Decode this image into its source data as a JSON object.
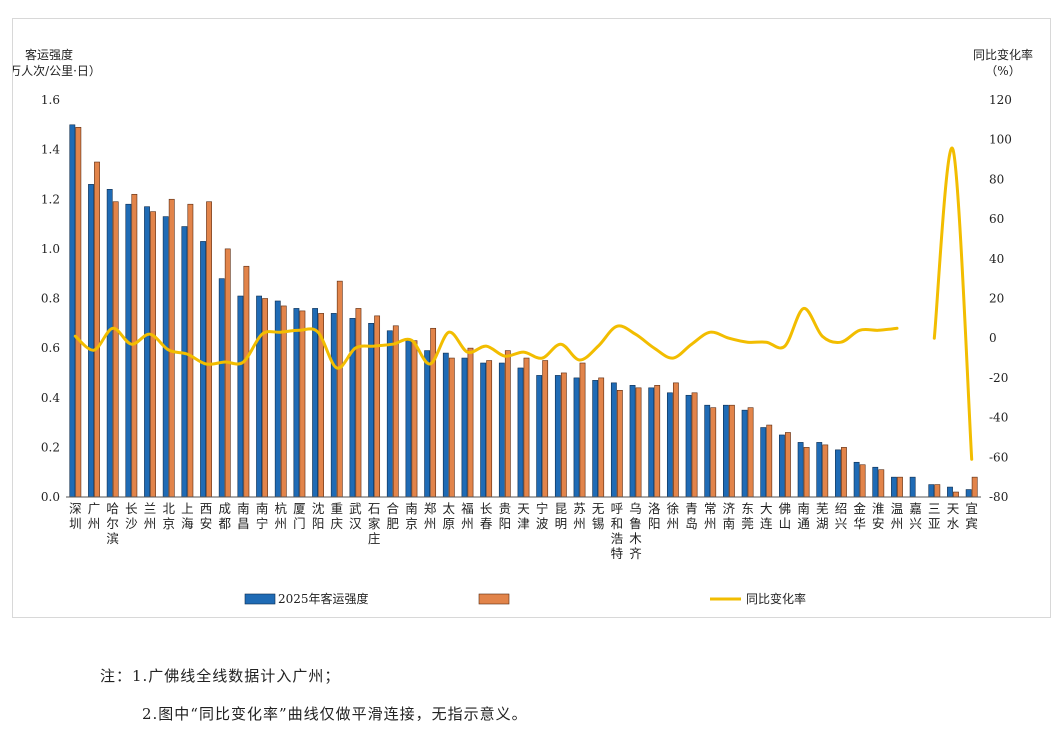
{
  "chart_data": {
    "type": "bar",
    "left_axis_title": "客运强度",
    "left_axis_unit": "（万人次/公里·日）",
    "right_axis_title": "同比变化率",
    "right_axis_unit": "（%）",
    "ylim": [
      0,
      1.6
    ],
    "yticks": [
      "0.0",
      "0.2",
      "0.4",
      "0.6",
      "0.8",
      "1.0",
      "1.2",
      "1.4",
      "1.6"
    ],
    "y2lim": [
      -80,
      120
    ],
    "y2ticks": [
      "-80",
      "-60",
      "-40",
      "-20",
      "0",
      "20",
      "40",
      "60",
      "80",
      "100",
      "120"
    ],
    "categories": [
      "深圳",
      "广州",
      "哈尔滨",
      "长沙",
      "兰州",
      "北京",
      "上海",
      "西安",
      "成都",
      "南昌",
      "南宁",
      "杭州",
      "厦门",
      "沈阳",
      "重庆",
      "武汉",
      "石家庄",
      "合肥",
      "南京",
      "郑州",
      "太原",
      "福州",
      "长春",
      "贵阳",
      "天津",
      "宁波",
      "昆明",
      "苏州",
      "无锡",
      "呼和浩特",
      "乌鲁木齐",
      "洛阳",
      "徐州",
      "青岛",
      "常州",
      "济南",
      "东莞",
      "大连",
      "佛山",
      "南通",
      "芜湖",
      "绍兴",
      "金华",
      "淮安",
      "温州",
      "嘉兴",
      "三亚",
      "天水",
      "宜宾"
    ],
    "series": [
      {
        "name": "2025年客运强度",
        "color": "#1f6bb5",
        "values": [
          1.5,
          1.26,
          1.24,
          1.18,
          1.17,
          1.13,
          1.09,
          1.03,
          0.88,
          0.81,
          0.81,
          0.79,
          0.76,
          0.76,
          0.74,
          0.72,
          0.7,
          0.67,
          0.63,
          0.59,
          0.58,
          0.56,
          0.54,
          0.54,
          0.52,
          0.49,
          0.49,
          0.48,
          0.47,
          0.46,
          0.45,
          0.44,
          0.42,
          0.41,
          0.37,
          0.37,
          0.35,
          0.28,
          0.25,
          0.22,
          0.22,
          0.19,
          0.14,
          0.12,
          0.08,
          0.08,
          0.05,
          0.04,
          0.03
        ]
      },
      {
        "name": "",
        "color": "#e2844a",
        "values": [
          1.49,
          1.35,
          1.19,
          1.22,
          1.15,
          1.2,
          1.18,
          1.19,
          1.0,
          0.93,
          0.8,
          0.77,
          0.75,
          0.74,
          0.87,
          0.76,
          0.73,
          0.69,
          0.63,
          0.68,
          0.56,
          0.6,
          0.55,
          0.59,
          0.56,
          0.55,
          0.5,
          0.54,
          0.48,
          0.43,
          0.44,
          0.45,
          0.46,
          0.42,
          0.36,
          0.37,
          0.36,
          0.29,
          0.26,
          0.2,
          0.21,
          0.2,
          0.13,
          0.11,
          0.08,
          null,
          0.05,
          0.02,
          0.08
        ]
      },
      {
        "name": "同比变化率",
        "color": "#f2bd00",
        "axis": "right",
        "values": [
          1,
          -6,
          5,
          -3,
          2,
          -6,
          -8,
          -13,
          -12,
          -12,
          2,
          3,
          4,
          3,
          -15,
          -5,
          -4,
          -3,
          -1,
          -13,
          3,
          -7,
          -4,
          -9,
          -7,
          -10,
          -3,
          -11,
          -4,
          6,
          2,
          -5,
          -10,
          -3,
          3,
          0,
          -2,
          -2,
          -4,
          15,
          1,
          -2,
          4,
          4,
          5,
          null,
          0,
          95,
          -61
        ]
      }
    ],
    "legend": [
      "2025年客运强度",
      "",
      "同比变化率"
    ],
    "legend_position": "bottom",
    "grid": false
  },
  "notes": {
    "line1": "注：1.广佛线全线数据计入广州；",
    "line2": "2.图中“同比变化率”曲线仅做平滑连接，无指示意义。"
  }
}
